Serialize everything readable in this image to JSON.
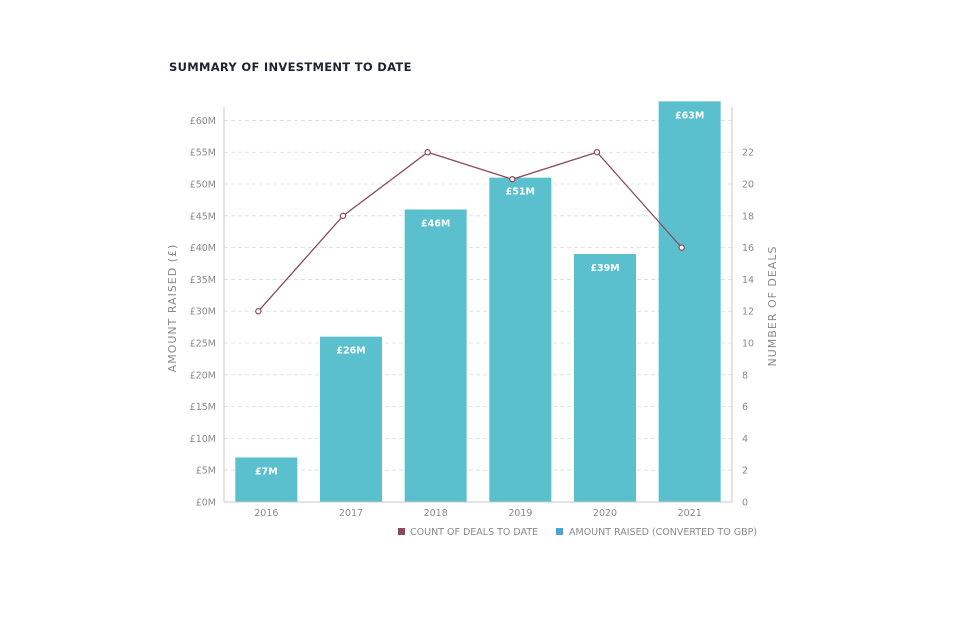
{
  "title": "SUMMARY OF INVESTMENT TO DATE",
  "colors": {
    "bar": "#5bc0ce",
    "line": "#8b4a5c",
    "grid": "#dcdcdc",
    "axis": "#c9c9c9",
    "title": "#1c2433",
    "text": "#8a8a8a"
  },
  "chart_data": {
    "type": "bar",
    "categories": [
      "2016",
      "2017",
      "2018",
      "2019",
      "2020",
      "2021"
    ],
    "bar_labels": [
      "£7M",
      "£26M",
      "£46M",
      "£51M",
      "£39M",
      "£63M"
    ],
    "series": [
      {
        "name": "AMOUNT RAISED (CONVERTED TO GBP)",
        "type": "bar",
        "axis": "left",
        "values": [
          7,
          26,
          46,
          51,
          39,
          63
        ]
      },
      {
        "name": "COUNT OF DEALS TO DATE",
        "type": "line",
        "axis": "right",
        "values": [
          12,
          18,
          22,
          20.3,
          22,
          16
        ]
      }
    ],
    "ylabel": "AMOUNT RAISED (£)",
    "y2label": "NUMBER OF DEALS",
    "ylim": [
      0,
      64
    ],
    "y2lim": [
      0,
      25.6
    ],
    "yticks": [
      0,
      5,
      10,
      15,
      20,
      25,
      30,
      35,
      40,
      45,
      50,
      55,
      60
    ],
    "ytick_labels": [
      "£0M",
      "£5M",
      "£10M",
      "£15M",
      "£20M",
      "£25M",
      "£30M",
      "£35M",
      "£40M",
      "£45M",
      "£50M",
      "£55M",
      "£60M"
    ],
    "y2ticks": [
      0,
      2,
      4,
      6,
      8,
      10,
      12,
      14,
      16,
      18,
      20,
      22
    ],
    "y2tick_labels": [
      "0",
      "2",
      "4",
      "6",
      "8",
      "10",
      "12",
      "14",
      "16",
      "18",
      "20",
      "22"
    ],
    "grid": true,
    "legend_position": "bottom-right"
  }
}
